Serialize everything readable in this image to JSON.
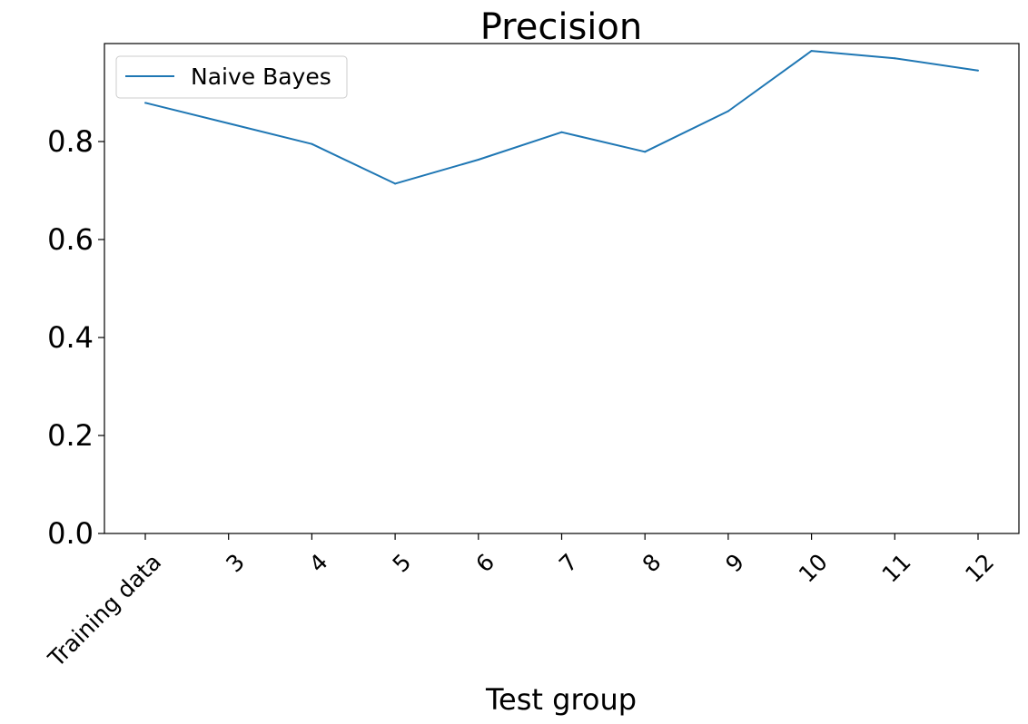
{
  "chart_data": {
    "type": "line",
    "title": "Precision",
    "xlabel": "Test group",
    "ylabel": "",
    "categories": [
      "Training data",
      "3",
      "4",
      "5",
      "6",
      "7",
      "8",
      "9",
      "10",
      "11",
      "12"
    ],
    "series": [
      {
        "name": "Naive Bayes",
        "color": "#1f77b4",
        "values": [
          0.879,
          0.837,
          0.795,
          0.714,
          0.763,
          0.819,
          0.779,
          0.862,
          0.985,
          0.97,
          0.945
        ]
      }
    ],
    "ylim": [
      0.0,
      1.0
    ],
    "yticks": [
      0.0,
      0.2,
      0.4,
      0.6,
      0.8
    ],
    "ytick_labels": [
      "0.0",
      "0.2",
      "0.4",
      "0.6",
      "0.8"
    ],
    "grid": false,
    "legend": "top-left"
  }
}
